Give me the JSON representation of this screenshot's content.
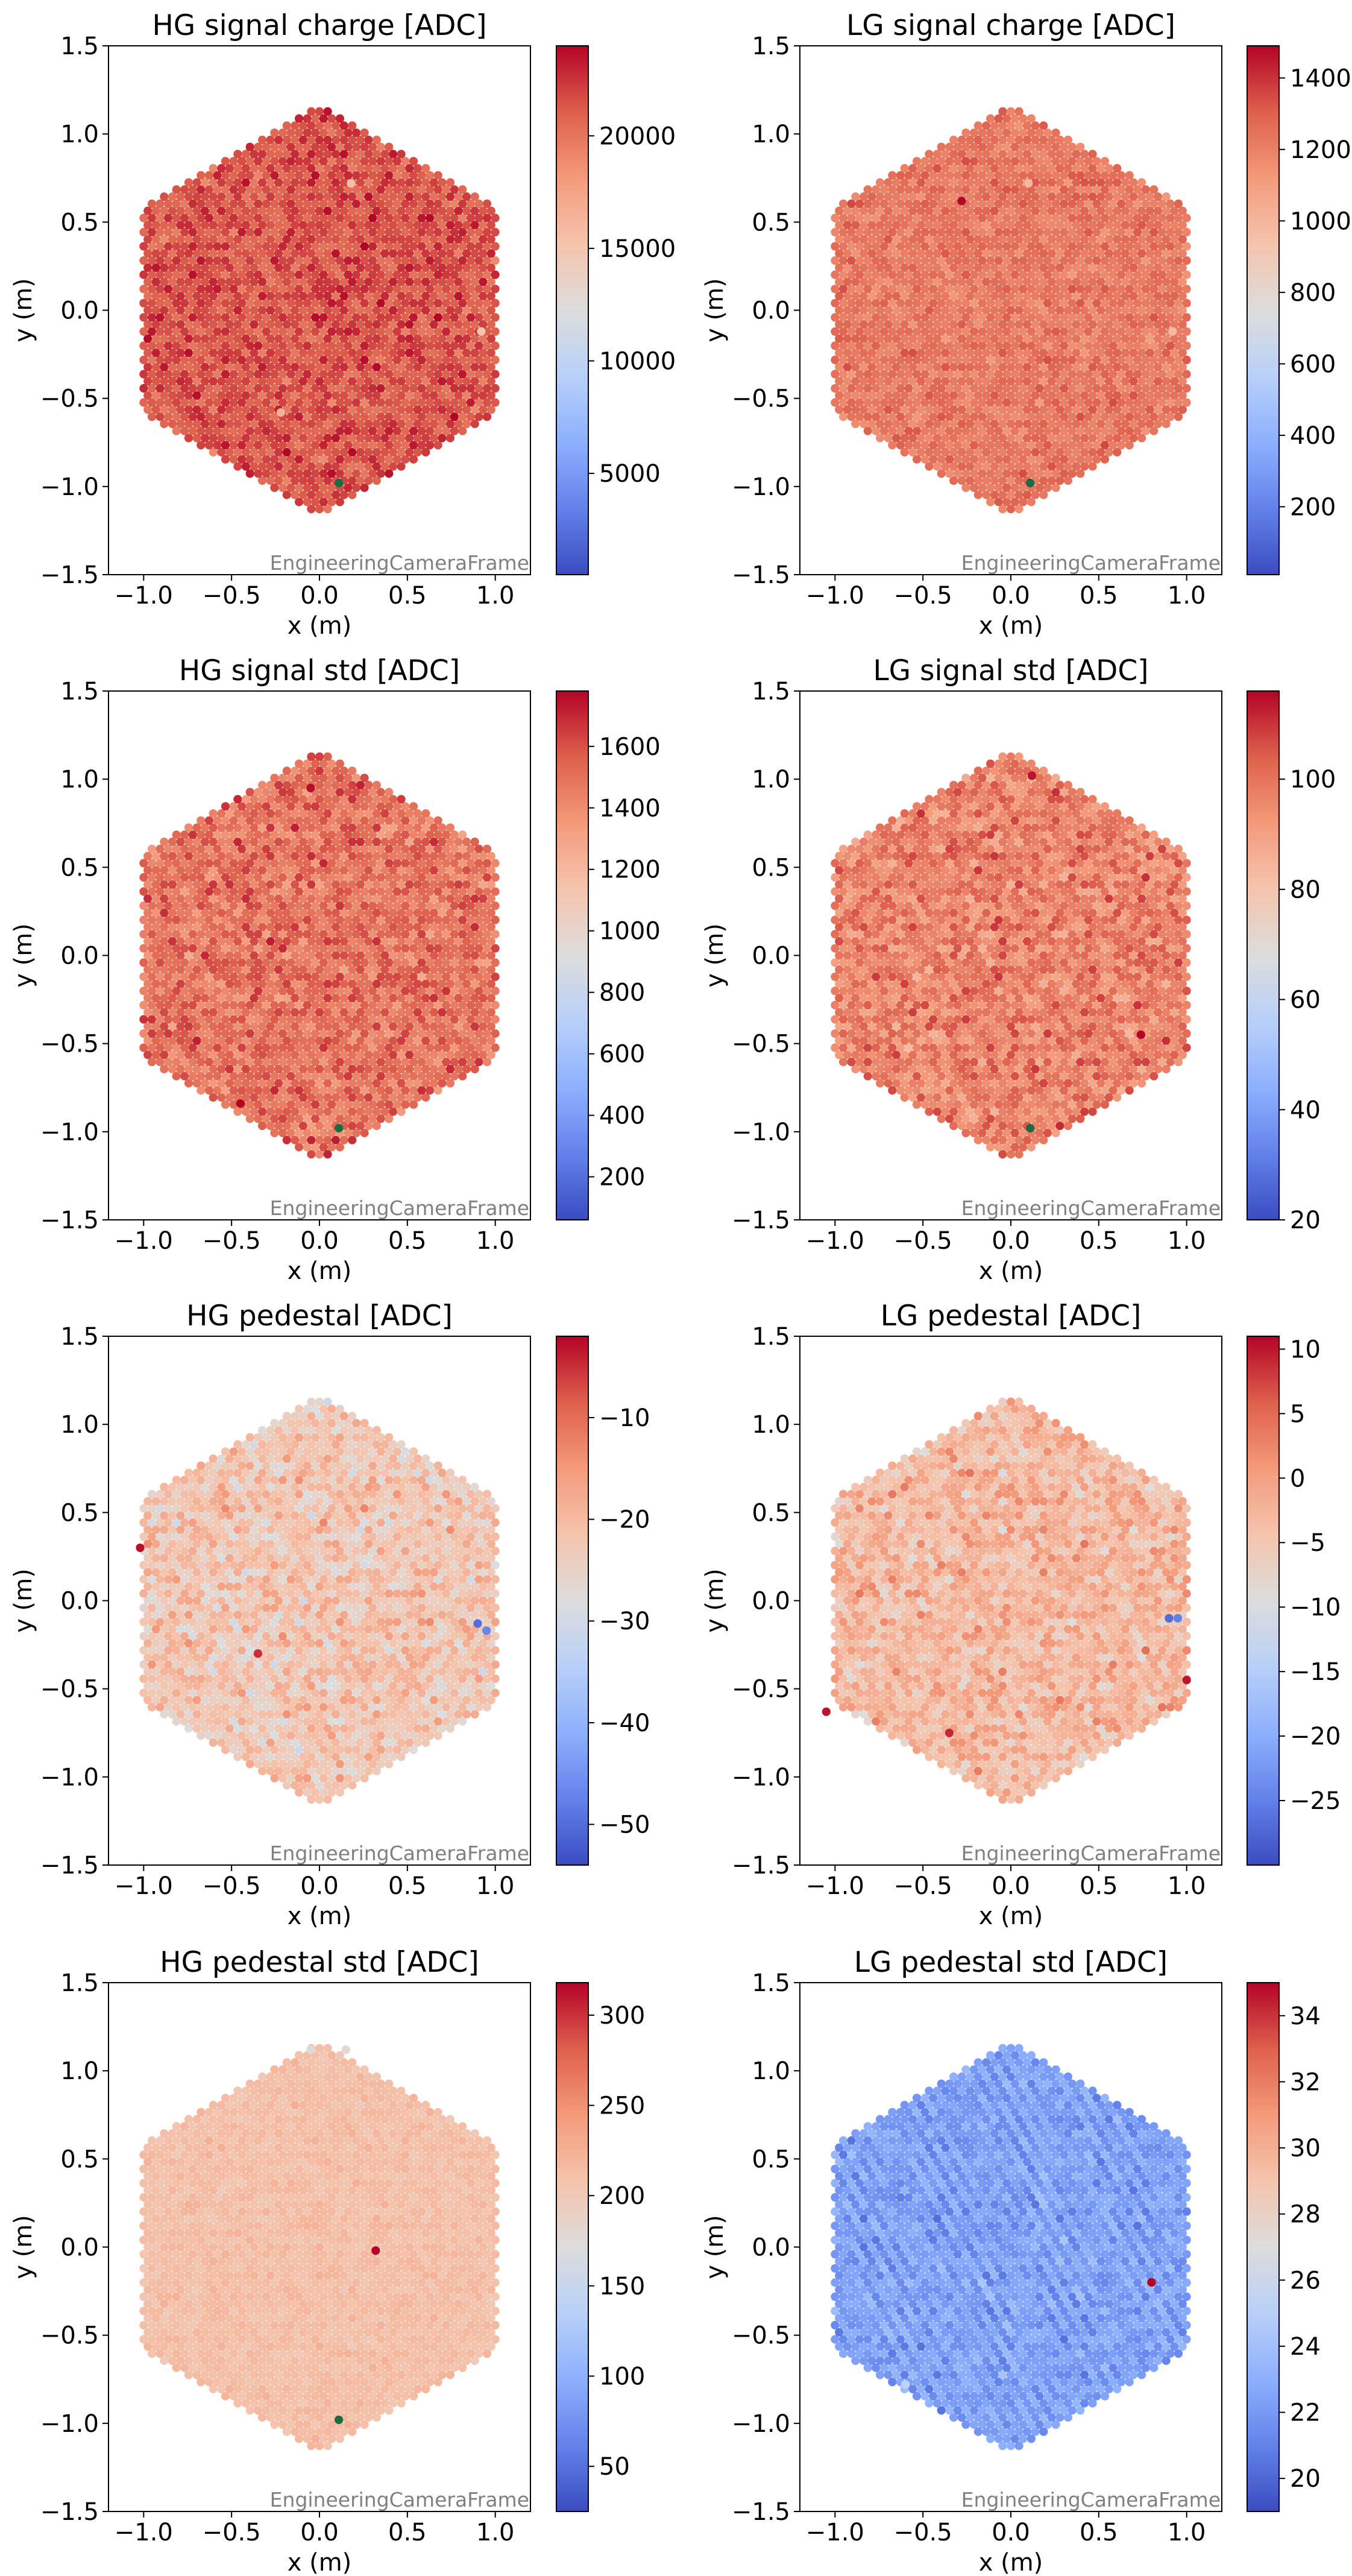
{
  "figure": {
    "panels": 8
  },
  "chart_data": [
    {
      "type": "heatmap",
      "title": "HG signal charge [ADC]",
      "xlabel": "x  (m)",
      "ylabel": "y  (m)",
      "xlim": [
        -1.2,
        1.2
      ],
      "ylim": [
        -1.5,
        1.5
      ],
      "x_ticks": [
        -1.0,
        -0.5,
        0.0,
        0.5,
        1.0
      ],
      "y_ticks": [
        -1.5,
        -1.0,
        -0.5,
        0.0,
        0.5,
        1.0,
        1.5
      ],
      "colorbar": {
        "min": 500,
        "max": 24000,
        "ticks": [
          5000,
          10000,
          15000,
          20000
        ],
        "colormap": "coolwarm"
      },
      "camera_mean": 21500,
      "camera_spread": 1500,
      "camera_frame_label": "EngineeringCameraFrame",
      "highlighted_pixels": [
        {
          "x": 0.11,
          "y": -0.98,
          "color": "#1e6b43"
        },
        {
          "x": 0.18,
          "y": 0.72,
          "value": 15500
        },
        {
          "x": 0.92,
          "y": -0.12,
          "value": 15000
        },
        {
          "x": -0.22,
          "y": -0.58,
          "value": 16500
        }
      ]
    },
    {
      "type": "heatmap",
      "title": "LG signal charge [ADC]",
      "xlabel": "x  (m)",
      "ylabel": "y  (m)",
      "xlim": [
        -1.2,
        1.2
      ],
      "ylim": [
        -1.5,
        1.5
      ],
      "x_ticks": [
        -1.0,
        -0.5,
        0.0,
        0.5,
        1.0
      ],
      "y_ticks": [
        -1.5,
        -1.0,
        -0.5,
        0.0,
        0.5,
        1.0,
        1.5
      ],
      "colorbar": {
        "min": 10,
        "max": 1490,
        "ticks": [
          200,
          400,
          600,
          800,
          1000,
          1200,
          1400
        ],
        "colormap": "coolwarm"
      },
      "camera_mean": 1230,
      "camera_spread": 70,
      "camera_frame_label": "EngineeringCameraFrame",
      "highlighted_pixels": [
        {
          "x": 0.11,
          "y": -0.98,
          "color": "#1e6b43"
        },
        {
          "x": -0.28,
          "y": 0.62,
          "value": 1480
        },
        {
          "x": 0.1,
          "y": 0.72,
          "value": 1000
        },
        {
          "x": 0.92,
          "y": -0.12,
          "value": 980
        }
      ]
    },
    {
      "type": "heatmap",
      "title": "HG signal std [ADC]",
      "xlabel": "x  (m)",
      "ylabel": "y  (m)",
      "xlim": [
        -1.2,
        1.2
      ],
      "ylim": [
        -1.5,
        1.5
      ],
      "x_ticks": [
        -1.0,
        -0.5,
        0.0,
        0.5,
        1.0
      ],
      "y_ticks": [
        -1.5,
        -1.0,
        -0.5,
        0.0,
        0.5,
        1.0,
        1.5
      ],
      "colorbar": {
        "min": 60,
        "max": 1780,
        "ticks": [
          200,
          400,
          600,
          800,
          1000,
          1200,
          1400,
          1600
        ],
        "colormap": "coolwarm"
      },
      "camera_mean": 1500,
      "camera_spread": 130,
      "camera_frame_label": "EngineeringCameraFrame",
      "highlighted_pixels": [
        {
          "x": 0.11,
          "y": -0.98,
          "color": "#1e6b43"
        },
        {
          "x": -0.45,
          "y": -0.84,
          "value": 1780
        },
        {
          "x": -0.05,
          "y": 0.95,
          "value": 1760
        }
      ]
    },
    {
      "type": "heatmap",
      "title": "LG signal std [ADC]",
      "xlabel": "x  (m)",
      "ylabel": "y  (m)",
      "xlim": [
        -1.2,
        1.2
      ],
      "ylim": [
        -1.5,
        1.5
      ],
      "x_ticks": [
        -1.0,
        -0.5,
        0.0,
        0.5,
        1.0
      ],
      "y_ticks": [
        -1.5,
        -1.0,
        -0.5,
        0.0,
        0.5,
        1.0,
        1.5
      ],
      "colorbar": {
        "min": 20,
        "max": 116,
        "ticks": [
          20,
          40,
          60,
          80,
          100
        ],
        "colormap": "coolwarm"
      },
      "camera_mean": 97,
      "camera_spread": 8,
      "camera_frame_label": "EngineeringCameraFrame",
      "highlighted_pixels": [
        {
          "x": 0.11,
          "y": -0.98,
          "color": "#1e6b43"
        },
        {
          "x": 0.74,
          "y": -0.45,
          "value": 116
        },
        {
          "x": 0.12,
          "y": 1.02,
          "value": 114
        }
      ]
    },
    {
      "type": "heatmap",
      "title": "HG pedestal [ADC]",
      "xlabel": "x  (m)",
      "ylabel": "y  (m)",
      "xlim": [
        -1.2,
        1.2
      ],
      "ylim": [
        -1.5,
        1.5
      ],
      "x_ticks": [
        -1.0,
        -0.5,
        0.0,
        0.5,
        1.0
      ],
      "y_ticks": [
        -1.5,
        -1.0,
        -0.5,
        0.0,
        0.5,
        1.0,
        1.5
      ],
      "colorbar": {
        "min": -54,
        "max": -2,
        "ticks": [
          -50,
          -40,
          -30,
          -20,
          -10
        ],
        "colormap": "coolwarm"
      },
      "camera_mean": -22,
      "camera_spread": 5,
      "camera_frame_label": "EngineeringCameraFrame",
      "highlighted_pixels": [
        {
          "x": 0.9,
          "y": -0.13,
          "value": -50
        },
        {
          "x": 0.95,
          "y": -0.17,
          "value": -47
        },
        {
          "x": -1.02,
          "y": 0.3,
          "value": -3
        },
        {
          "x": -0.35,
          "y": -0.3,
          "value": -5
        }
      ]
    },
    {
      "type": "heatmap",
      "title": "LG pedestal [ADC]",
      "xlabel": "x  (m)",
      "ylabel": "y  (m)",
      "xlim": [
        -1.2,
        1.2
      ],
      "ylim": [
        -1.5,
        1.5
      ],
      "x_ticks": [
        -1.0,
        -0.5,
        0.0,
        0.5,
        1.0
      ],
      "y_ticks": [
        -1.5,
        -1.0,
        -0.5,
        0.0,
        0.5,
        1.0,
        1.5
      ],
      "colorbar": {
        "min": -30,
        "max": 11,
        "ticks": [
          -25,
          -20,
          -15,
          -10,
          -5,
          0,
          5,
          10
        ],
        "colormap": "coolwarm"
      },
      "camera_mean": -3,
      "camera_spread": 4,
      "camera_frame_label": "EngineeringCameraFrame",
      "highlighted_pixels": [
        {
          "x": 0.9,
          "y": -0.1,
          "value": -27
        },
        {
          "x": 0.95,
          "y": -0.1,
          "value": -25
        },
        {
          "x": 1.0,
          "y": -0.45,
          "value": 10
        },
        {
          "x": -1.05,
          "y": -0.63,
          "value": 10
        },
        {
          "x": -0.35,
          "y": -0.75,
          "value": 9
        }
      ]
    },
    {
      "type": "heatmap",
      "title": "HG pedestal std [ADC]",
      "xlabel": "x  (m)",
      "ylabel": "y  (m)",
      "xlim": [
        -1.2,
        1.2
      ],
      "ylim": [
        -1.5,
        1.5
      ],
      "x_ticks": [
        -1.0,
        -0.5,
        0.0,
        0.5,
        1.0
      ],
      "y_ticks": [
        -1.5,
        -1.0,
        -0.5,
        0.0,
        0.5,
        1.0,
        1.5
      ],
      "colorbar": {
        "min": 25,
        "max": 318,
        "ticks": [
          50,
          100,
          150,
          200,
          250,
          300
        ],
        "colormap": "coolwarm"
      },
      "camera_mean": 212,
      "camera_spread": 8,
      "camera_frame_label": "EngineeringCameraFrame",
      "highlighted_pixels": [
        {
          "x": 0.11,
          "y": -0.98,
          "color": "#1e6b43"
        },
        {
          "x": 0.32,
          "y": -0.02,
          "value": 318
        },
        {
          "x": -0.05,
          "y": 1.12,
          "value": 175
        },
        {
          "x": 0.15,
          "y": 1.12,
          "value": 180
        }
      ]
    },
    {
      "type": "heatmap",
      "title": "LG pedestal std [ADC]",
      "xlabel": "x  (m)",
      "ylabel": "y  (m)",
      "xlim": [
        -1.2,
        1.2
      ],
      "ylim": [
        -1.5,
        1.5
      ],
      "x_ticks": [
        -1.0,
        -0.5,
        0.0,
        0.5,
        1.0
      ],
      "y_ticks": [
        -1.5,
        -1.0,
        -0.5,
        0.0,
        0.5,
        1.0,
        1.5
      ],
      "colorbar": {
        "min": 19,
        "max": 35,
        "ticks": [
          20,
          22,
          24,
          26,
          28,
          30,
          32,
          34
        ],
        "colormap": "coolwarm"
      },
      "camera_mean": 22.3,
      "camera_spread": 0.8,
      "striped": true,
      "camera_frame_label": "EngineeringCameraFrame",
      "highlighted_pixels": [
        {
          "x": 0.8,
          "y": -0.2,
          "value": 35
        },
        {
          "x": -0.6,
          "y": -0.78,
          "value": 25.5
        }
      ]
    }
  ]
}
